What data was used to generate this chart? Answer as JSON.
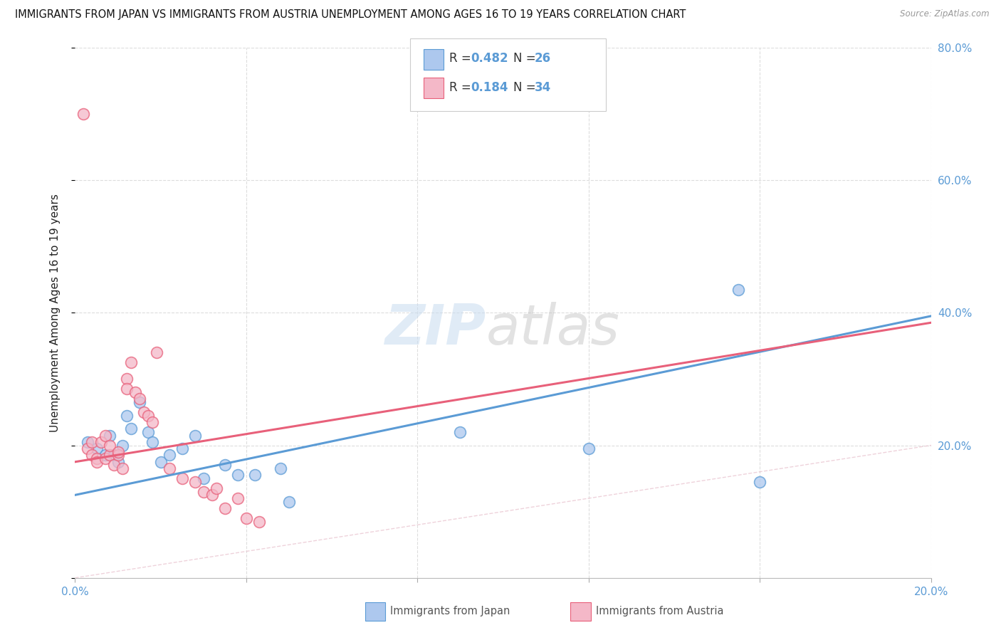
{
  "title": "IMMIGRANTS FROM JAPAN VS IMMIGRANTS FROM AUSTRIA UNEMPLOYMENT AMONG AGES 16 TO 19 YEARS CORRELATION CHART",
  "source": "Source: ZipAtlas.com",
  "ylabel": "Unemployment Among Ages 16 to 19 years",
  "xlim": [
    0,
    0.2
  ],
  "ylim": [
    0,
    0.8
  ],
  "xticks": [
    0.0,
    0.04,
    0.08,
    0.12,
    0.16,
    0.2
  ],
  "yticks": [
    0.0,
    0.2,
    0.4,
    0.6,
    0.8
  ],
  "japan_R": "0.482",
  "japan_N": "26",
  "austria_R": "0.184",
  "austria_N": "34",
  "japan_color": "#adc8ee",
  "japan_edge_color": "#5b9bd5",
  "austria_color": "#f4b8c8",
  "austria_edge_color": "#e8607a",
  "diagonal_color": "#d8d8d8",
  "japan_trend_x": [
    0.0,
    0.2
  ],
  "japan_trend_y": [
    0.125,
    0.395
  ],
  "austria_trend_x": [
    0.0,
    0.2
  ],
  "austria_trend_y": [
    0.175,
    0.385
  ],
  "japan_scatter_x": [
    0.003,
    0.005,
    0.007,
    0.008,
    0.009,
    0.01,
    0.011,
    0.012,
    0.013,
    0.015,
    0.017,
    0.018,
    0.02,
    0.022,
    0.025,
    0.028,
    0.03,
    0.035,
    0.038,
    0.042,
    0.048,
    0.05,
    0.09,
    0.12,
    0.155,
    0.16
  ],
  "japan_scatter_y": [
    0.205,
    0.195,
    0.185,
    0.215,
    0.185,
    0.175,
    0.2,
    0.245,
    0.225,
    0.265,
    0.22,
    0.205,
    0.175,
    0.185,
    0.195,
    0.215,
    0.15,
    0.17,
    0.155,
    0.155,
    0.165,
    0.115,
    0.22,
    0.195,
    0.435,
    0.145
  ],
  "austria_scatter_x": [
    0.002,
    0.003,
    0.004,
    0.004,
    0.005,
    0.005,
    0.006,
    0.007,
    0.007,
    0.008,
    0.008,
    0.009,
    0.01,
    0.01,
    0.011,
    0.012,
    0.012,
    0.013,
    0.014,
    0.015,
    0.016,
    0.017,
    0.018,
    0.019,
    0.022,
    0.025,
    0.028,
    0.03,
    0.032,
    0.033,
    0.035,
    0.038,
    0.04,
    0.043
  ],
  "austria_scatter_y": [
    0.7,
    0.195,
    0.185,
    0.205,
    0.18,
    0.175,
    0.205,
    0.18,
    0.215,
    0.185,
    0.2,
    0.17,
    0.185,
    0.19,
    0.165,
    0.3,
    0.285,
    0.325,
    0.28,
    0.27,
    0.25,
    0.245,
    0.235,
    0.34,
    0.165,
    0.15,
    0.145,
    0.13,
    0.125,
    0.135,
    0.105,
    0.12,
    0.09,
    0.085
  ],
  "background_color": "#ffffff",
  "grid_color": "#dddddd",
  "label_color": "#5b9bd5",
  "text_color_dark": "#222222",
  "tick_label_color": "#5b9bd5"
}
